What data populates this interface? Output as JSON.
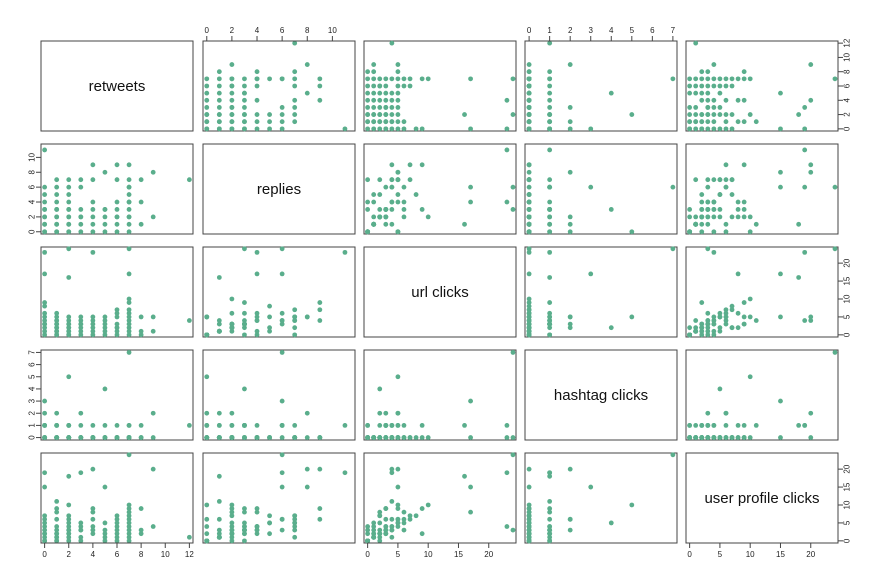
{
  "chart_data": {
    "type": "scatter",
    "plot_kind": "scatterplot-matrix",
    "variables": [
      "retweets",
      "replies",
      "url clicks",
      "hashtag clicks",
      "user profile clicks"
    ],
    "point_color": "#5aae8c",
    "axes": [
      {
        "range": [
          -0.3,
          12.3
        ],
        "ticks": [
          0,
          2,
          4,
          6,
          8,
          10,
          12
        ],
        "tick_labels": [
          "0",
          "2",
          "4",
          "6",
          "8",
          "10",
          "12"
        ]
      },
      {
        "range": [
          -0.3,
          11.8
        ],
        "ticks": [
          0,
          2,
          4,
          6,
          8,
          10
        ],
        "tick_labels": [
          "0",
          "2",
          "4",
          "6",
          "8",
          "10"
        ]
      },
      {
        "range": [
          -0.6,
          24.5
        ],
        "ticks": [
          0,
          5,
          10,
          15,
          20
        ],
        "tick_labels": [
          "0",
          "5",
          "10",
          "15",
          "20"
        ]
      },
      {
        "range": [
          -0.2,
          7.2
        ],
        "ticks": [
          0,
          1,
          2,
          3,
          4,
          5,
          6,
          7
        ],
        "tick_labels": [
          "0",
          "1",
          "2",
          "3",
          "4",
          "5",
          "6",
          "7"
        ]
      },
      {
        "range": [
          -0.6,
          24.5
        ],
        "ticks": [
          0,
          5,
          10,
          15,
          20
        ],
        "tick_labels": [
          "0",
          "5",
          "10",
          "15",
          "20"
        ]
      }
    ],
    "observations": [
      [
        0,
        0,
        0,
        0,
        0
      ],
      [
        0,
        1,
        1,
        0,
        1
      ],
      [
        0,
        2,
        2,
        0,
        0
      ],
      [
        0,
        3,
        3,
        1,
        2
      ],
      [
        0,
        4,
        4,
        0,
        3
      ],
      [
        0,
        0,
        5,
        1,
        4
      ],
      [
        0,
        2,
        6,
        0,
        5
      ],
      [
        0,
        6,
        17,
        3,
        15
      ],
      [
        0,
        5,
        8,
        0,
        7
      ],
      [
        0,
        1,
        3,
        2,
        6
      ],
      [
        0,
        3,
        9,
        1,
        2
      ],
      [
        0,
        11,
        23,
        1,
        19
      ],
      [
        1,
        0,
        0,
        0,
        0
      ],
      [
        1,
        1,
        1,
        0,
        1
      ],
      [
        1,
        2,
        2,
        0,
        1
      ],
      [
        1,
        3,
        0,
        1,
        0
      ],
      [
        1,
        4,
        1,
        0,
        2
      ],
      [
        1,
        5,
        2,
        0,
        2
      ],
      [
        1,
        6,
        3,
        1,
        3
      ],
      [
        1,
        7,
        4,
        0,
        4
      ],
      [
        1,
        0,
        5,
        2,
        6
      ],
      [
        1,
        1,
        4,
        1,
        11
      ],
      [
        1,
        2,
        3,
        0,
        9
      ],
      [
        1,
        3,
        6,
        0,
        8
      ],
      [
        2,
        0,
        0,
        0,
        0
      ],
      [
        2,
        1,
        1,
        0,
        1
      ],
      [
        2,
        2,
        2,
        0,
        2
      ],
      [
        2,
        3,
        3,
        1,
        3
      ],
      [
        2,
        4,
        0,
        0,
        4
      ],
      [
        2,
        5,
        1,
        0,
        5
      ],
      [
        2,
        6,
        4,
        0,
        6
      ],
      [
        2,
        7,
        2,
        0,
        7
      ],
      [
        2,
        0,
        5,
        5,
        10
      ],
      [
        2,
        1,
        16,
        1,
        18
      ],
      [
        2,
        2,
        3,
        1,
        2
      ],
      [
        2,
        3,
        24,
        0,
        3
      ],
      [
        3,
        0,
        0,
        0,
        0
      ],
      [
        3,
        1,
        1,
        0,
        1
      ],
      [
        3,
        2,
        2,
        2,
        3
      ],
      [
        3,
        3,
        3,
        0,
        4
      ],
      [
        3,
        6,
        4,
        1,
        19
      ],
      [
        3,
        7,
        5,
        0,
        5
      ],
      [
        3,
        2,
        3,
        0,
        3
      ],
      [
        4,
        0,
        0,
        0,
        2
      ],
      [
        4,
        1,
        1,
        0,
        3
      ],
      [
        4,
        2,
        2,
        1,
        8
      ],
      [
        4,
        3,
        3,
        0,
        9
      ],
      [
        4,
        9,
        4,
        0,
        20
      ],
      [
        4,
        7,
        5,
        0,
        6
      ],
      [
        4,
        4,
        23,
        0,
        4
      ],
      [
        5,
        0,
        0,
        1,
        0
      ],
      [
        5,
        1,
        1,
        0,
        1
      ],
      [
        5,
        2,
        3,
        0,
        2
      ],
      [
        5,
        3,
        2,
        4,
        5
      ],
      [
        5,
        8,
        5,
        0,
        15
      ],
      [
        5,
        3,
        4,
        0,
        3
      ],
      [
        6,
        0,
        0,
        0,
        0
      ],
      [
        6,
        1,
        1,
        0,
        1
      ],
      [
        6,
        2,
        2,
        0,
        2
      ],
      [
        6,
        3,
        3,
        1,
        4
      ],
      [
        6,
        9,
        7,
        0,
        6
      ],
      [
        6,
        7,
        5,
        0,
        5
      ],
      [
        6,
        4,
        6,
        0,
        3
      ],
      [
        6,
        2,
        2,
        0,
        7
      ],
      [
        7,
        0,
        0,
        0,
        0
      ],
      [
        7,
        1,
        1,
        0,
        1
      ],
      [
        7,
        2,
        2,
        0,
        2
      ],
      [
        7,
        3,
        3,
        1,
        3
      ],
      [
        7,
        4,
        4,
        0,
        4
      ],
      [
        7,
        5,
        5,
        0,
        5
      ],
      [
        7,
        6,
        6,
        1,
        6
      ],
      [
        7,
        7,
        7,
        0,
        7
      ],
      [
        7,
        4,
        17,
        0,
        8
      ],
      [
        7,
        9,
        9,
        0,
        9
      ],
      [
        7,
        6,
        24,
        7,
        24
      ],
      [
        7,
        2,
        10,
        0,
        10
      ],
      [
        8,
        7,
        0,
        0,
        3
      ],
      [
        8,
        4,
        5,
        1,
        9
      ],
      [
        8,
        1,
        1,
        0,
        2
      ],
      [
        9,
        8,
        5,
        2,
        20
      ],
      [
        9,
        2,
        1,
        0,
        4
      ],
      [
        12,
        7,
        4,
        1,
        1
      ]
    ]
  }
}
